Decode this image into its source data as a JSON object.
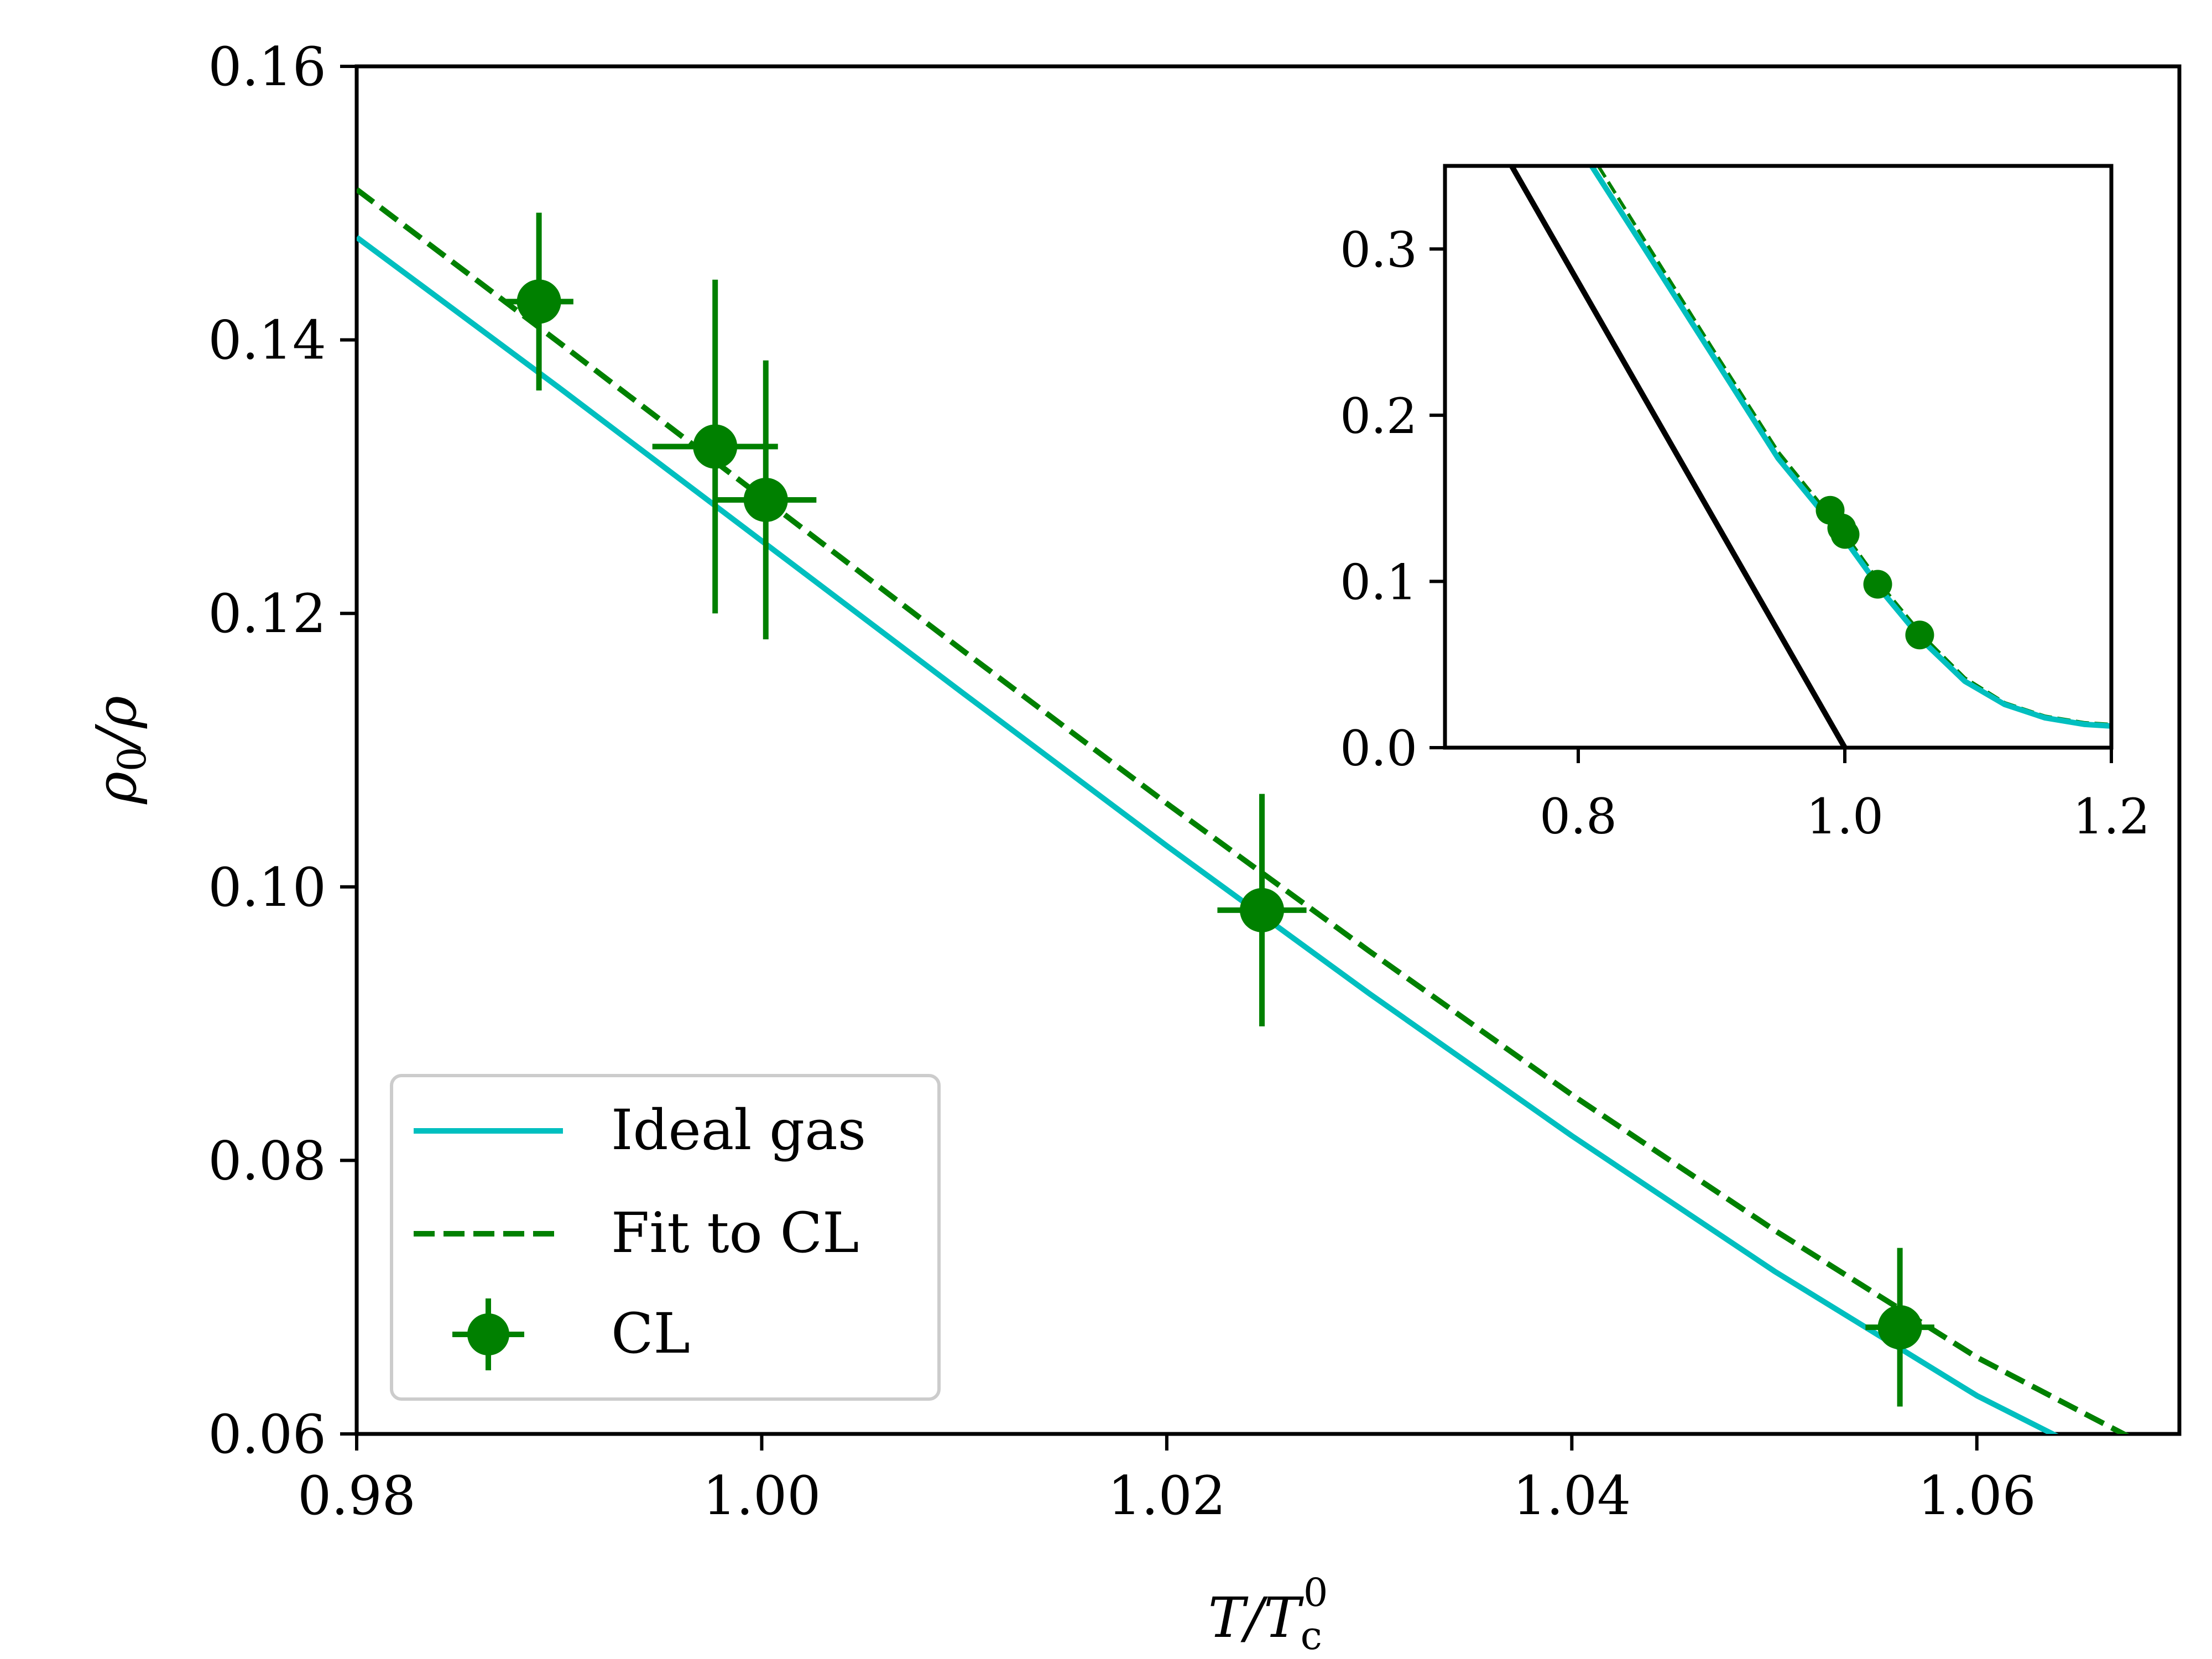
{
  "chart_data": [
    {
      "id": "main",
      "type": "line",
      "xlabel": "T/T_c^0",
      "ylabel": "ρ0/ρ",
      "xlim": [
        0.98,
        1.07
      ],
      "ylim": [
        0.06,
        0.16
      ],
      "xticks": [
        0.98,
        1.0,
        1.02,
        1.04,
        1.06
      ],
      "xtick_labels": [
        "0.98",
        "1.00",
        "1.02",
        "1.04",
        "1.06"
      ],
      "yticks": [
        0.06,
        0.08,
        0.1,
        0.12,
        0.14,
        0.16
      ],
      "ytick_labels": [
        "0.06",
        "0.08",
        "0.10",
        "0.12",
        "0.14",
        "0.16"
      ],
      "legend_position": "lower-left",
      "series": [
        {
          "name": "Ideal gas",
          "style": "solid",
          "color": "#00bfbf",
          "x": [
            0.98,
            0.99,
            1.0,
            1.01,
            1.02,
            1.03,
            1.04,
            1.05,
            1.06,
            1.064
          ],
          "y": [
            0.1475,
            0.1365,
            0.1253,
            0.1141,
            0.103,
            0.0922,
            0.0818,
            0.0719,
            0.0628,
            0.0598
          ]
        },
        {
          "name": "Fit to CL",
          "style": "dashed",
          "color": "#008000",
          "x": [
            0.98,
            0.99,
            1.0,
            1.01,
            1.02,
            1.03,
            1.04,
            1.05,
            1.06,
            1.0675
          ],
          "y": [
            0.151,
            0.1398,
            0.1285,
            0.1172,
            0.1061,
            0.0953,
            0.0848,
            0.0749,
            0.0656,
            0.0598
          ]
        },
        {
          "name": "CL",
          "style": "errorbar",
          "color": "#008000",
          "points": [
            {
              "x": 0.989,
              "y": 0.1428,
              "xerr": 0.0017,
              "yerr": 0.0065
            },
            {
              "x": 0.9977,
              "y": 0.1322,
              "xerr": 0.0031,
              "yerr": 0.0122
            },
            {
              "x": 1.0002,
              "y": 0.1283,
              "xerr": 0.0025,
              "yerr": 0.0102
            },
            {
              "x": 1.0247,
              "y": 0.0983,
              "xerr": 0.0022,
              "yerr": 0.0085
            },
            {
              "x": 1.0562,
              "y": 0.0678,
              "xerr": 0.0017,
              "yerr": 0.0058
            }
          ]
        }
      ]
    },
    {
      "id": "inset",
      "type": "line",
      "xlim": [
        0.7,
        1.2
      ],
      "ylim": [
        0.0,
        0.35
      ],
      "xticks": [
        0.8,
        1.0,
        1.2
      ],
      "xtick_labels": [
        "0.8",
        "1.0",
        "1.2"
      ],
      "yticks": [
        0.0,
        0.1,
        0.2,
        0.3
      ],
      "ytick_labels": [
        "0.0",
        "0.1",
        "0.2",
        "0.3"
      ],
      "series": [
        {
          "name": "Ideal gas (inset)",
          "style": "solid",
          "color": "#00bfbf",
          "x": [
            0.81,
            0.85,
            0.9,
            0.95,
            1.0,
            1.03,
            1.06,
            1.09,
            1.12,
            1.15,
            1.18,
            1.2
          ],
          "y": [
            0.35,
            0.3,
            0.237,
            0.174,
            0.1253,
            0.092,
            0.063,
            0.04,
            0.026,
            0.018,
            0.014,
            0.013
          ]
        },
        {
          "name": "Fit to CL (inset)",
          "style": "dashed",
          "color": "#008000",
          "x": [
            0.815,
            0.85,
            0.9,
            0.95,
            1.0,
            1.03,
            1.06,
            1.09,
            1.12,
            1.15,
            1.18,
            1.2
          ],
          "y": [
            0.35,
            0.305,
            0.241,
            0.178,
            0.1285,
            0.095,
            0.066,
            0.042,
            0.027,
            0.019,
            0.015,
            0.014
          ]
        },
        {
          "name": "Black line (inset)",
          "style": "solid",
          "color": "#000000",
          "x": [
            0.75,
            1.0
          ],
          "y": [
            0.35,
            0.0
          ]
        },
        {
          "name": "CL (inset)",
          "style": "markers",
          "color": "#008000",
          "x": [
            0.989,
            0.9977,
            1.0002,
            1.0247,
            1.0562
          ],
          "y": [
            0.1428,
            0.1322,
            0.1283,
            0.0983,
            0.0678
          ]
        }
      ]
    }
  ],
  "legend": {
    "entries": [
      "Ideal gas",
      "Fit to CL",
      "CL"
    ]
  },
  "colors": {
    "ideal_gas": "#00bfbf",
    "fit": "#008000",
    "cl": "#008000",
    "black": "#000000",
    "legend_border": "#cccccc"
  }
}
